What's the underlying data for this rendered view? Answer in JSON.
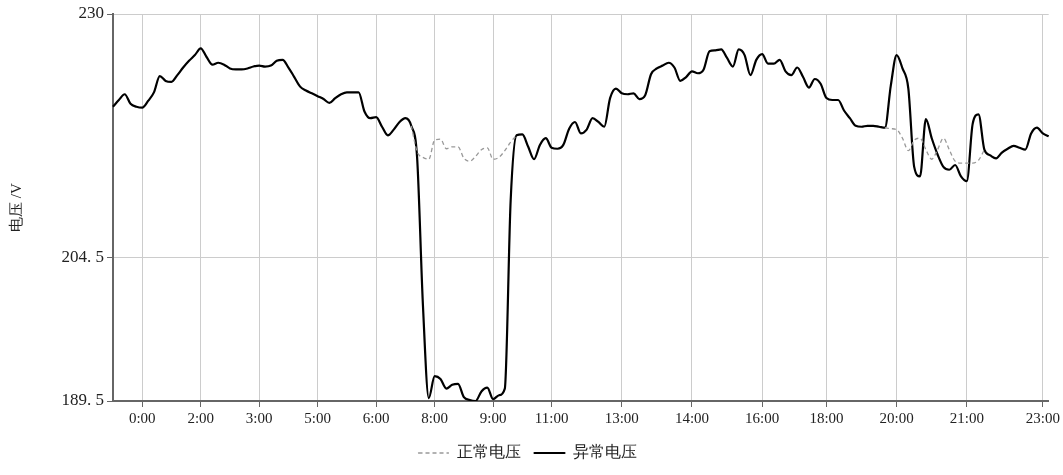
{
  "chart_data": {
    "type": "line",
    "ylabel": "电压 /V",
    "categories": [
      null,
      null,
      null,
      null,
      null,
      "0:00",
      null,
      null,
      null,
      null,
      null,
      null,
      null,
      null,
      null,
      "2:00",
      null,
      null,
      null,
      null,
      null,
      null,
      null,
      null,
      null,
      "3:00",
      null,
      null,
      null,
      null,
      null,
      null,
      null,
      null,
      null,
      "5:00",
      null,
      null,
      null,
      null,
      null,
      null,
      null,
      null,
      null,
      "6:00",
      null,
      null,
      null,
      null,
      null,
      null,
      null,
      null,
      null,
      "8:00",
      null,
      null,
      null,
      null,
      null,
      null,
      null,
      null,
      null,
      "9:00",
      null,
      null,
      null,
      null,
      null,
      null,
      null,
      null,
      null,
      "11:00",
      null,
      null,
      null,
      null,
      null,
      null,
      null,
      null,
      null,
      null,
      null,
      "13:00",
      null,
      null,
      null,
      null,
      null,
      null,
      null,
      null,
      null,
      null,
      null,
      "14:00",
      null,
      null,
      null,
      null,
      null,
      null,
      null,
      null,
      null,
      null,
      null,
      "16:00",
      null,
      null,
      null,
      null,
      null,
      null,
      null,
      null,
      null,
      null,
      "18:00",
      null,
      null,
      null,
      null,
      null,
      null,
      null,
      null,
      null,
      null,
      null,
      "20:00",
      null,
      null,
      null,
      null,
      null,
      null,
      null,
      null,
      null,
      null,
      null,
      "21:00",
      null,
      null,
      null,
      null,
      null,
      null,
      null,
      null,
      null,
      null,
      null,
      null,
      "23:00",
      null
    ],
    "series": [
      {
        "name": "正常电压",
        "color": "#999999",
        "line_style": "dashed",
        "values": [
          null,
          null,
          null,
          null,
          null,
          null,
          null,
          null,
          null,
          null,
          null,
          null,
          null,
          null,
          null,
          null,
          null,
          null,
          null,
          null,
          null,
          null,
          null,
          null,
          null,
          null,
          null,
          null,
          null,
          null,
          null,
          null,
          null,
          null,
          null,
          null,
          null,
          null,
          null,
          null,
          null,
          null,
          null,
          null,
          null,
          null,
          null,
          null,
          null,
          null,
          null,
          218.3,
          215.6,
          215.0,
          214.8,
          216.8,
          216.9,
          215.9,
          216.1,
          216.1,
          214.9,
          214.6,
          215.1,
          215.8,
          216.0,
          214.8,
          215.0,
          215.7,
          216.6,
          217.3,
          null,
          null,
          null,
          null,
          null,
          null,
          null,
          null,
          null,
          null,
          null,
          null,
          null,
          null,
          null,
          null,
          null,
          null,
          null,
          null,
          null,
          null,
          null,
          null,
          null,
          null,
          null,
          null,
          null,
          null,
          null,
          null,
          null,
          null,
          null,
          null,
          null,
          null,
          null,
          null,
          null,
          null,
          null,
          null,
          null,
          null,
          null,
          null,
          null,
          null,
          null,
          null,
          null,
          null,
          null,
          null,
          null,
          null,
          null,
          null,
          null,
          null,
          218.1,
          218.0,
          217.9,
          217.0,
          215.7,
          216.8,
          217.0,
          215.8,
          214.8,
          215.8,
          217.0,
          215.8,
          214.6,
          214.4,
          214.4,
          214.4,
          214.7,
          215.8,
          null,
          null,
          null,
          null,
          null,
          null,
          null,
          null,
          null,
          null,
          null
        ]
      },
      {
        "name": "异常电压",
        "color": "#000000",
        "line_style": "solid",
        "values": [
          220.3,
          221.0,
          221.6,
          220.6,
          220.3,
          220.2,
          220.9,
          221.8,
          223.5,
          223.0,
          222.9,
          223.6,
          224.4,
          225.1,
          225.7,
          226.4,
          225.5,
          224.7,
          224.9,
          224.7,
          224.3,
          224.2,
          224.2,
          224.3,
          224.5,
          224.6,
          224.5,
          224.6,
          225.1,
          225.2,
          224.4,
          223.4,
          222.4,
          222.0,
          221.7,
          221.4,
          221.1,
          220.7,
          221.2,
          221.6,
          221.8,
          221.8,
          221.8,
          219.8,
          219.1,
          219.2,
          218.2,
          217.3,
          217.9,
          218.7,
          219.1,
          218.3,
          215.0,
          199.5,
          189.8,
          192.1,
          191.8,
          190.8,
          191.2,
          191.3,
          189.9,
          189.6,
          189.5,
          190.5,
          190.9,
          189.7,
          190.1,
          190.8,
          210.5,
          217.3,
          217.4,
          216.1,
          214.8,
          216.3,
          217.0,
          216.0,
          215.9,
          216.3,
          218.0,
          218.7,
          217.5,
          217.9,
          219.1,
          218.7,
          218.2,
          221.2,
          222.2,
          221.7,
          221.6,
          221.7,
          221.1,
          221.5,
          223.7,
          224.3,
          224.6,
          224.9,
          224.4,
          223.0,
          223.4,
          224.0,
          223.8,
          224.2,
          226.1,
          226.2,
          226.3,
          225.4,
          224.5,
          226.3,
          225.7,
          223.6,
          225.2,
          225.8,
          224.8,
          224.8,
          225.2,
          224.0,
          223.6,
          224.4,
          223.4,
          222.3,
          223.2,
          222.7,
          221.2,
          221.0,
          221.0,
          219.9,
          219.1,
          218.3,
          218.2,
          218.3,
          218.3,
          218.2,
          218.1,
          222.5,
          225.7,
          224.3,
          222.2,
          214.0,
          213.0,
          219.0,
          217.0,
          215.3,
          214.0,
          213.7,
          214.2,
          213.0,
          212.5,
          218.5,
          219.5,
          215.8,
          215.2,
          214.9,
          215.5,
          215.9,
          216.2,
          216.0,
          215.8,
          217.5,
          218.1,
          217.5,
          217.2
        ]
      }
    ],
    "ylim": [
      189.5,
      230
    ],
    "yticks": [
      189.5,
      204.5,
      230
    ],
    "grid": true,
    "legend": "bottom",
    "marker": "none"
  }
}
